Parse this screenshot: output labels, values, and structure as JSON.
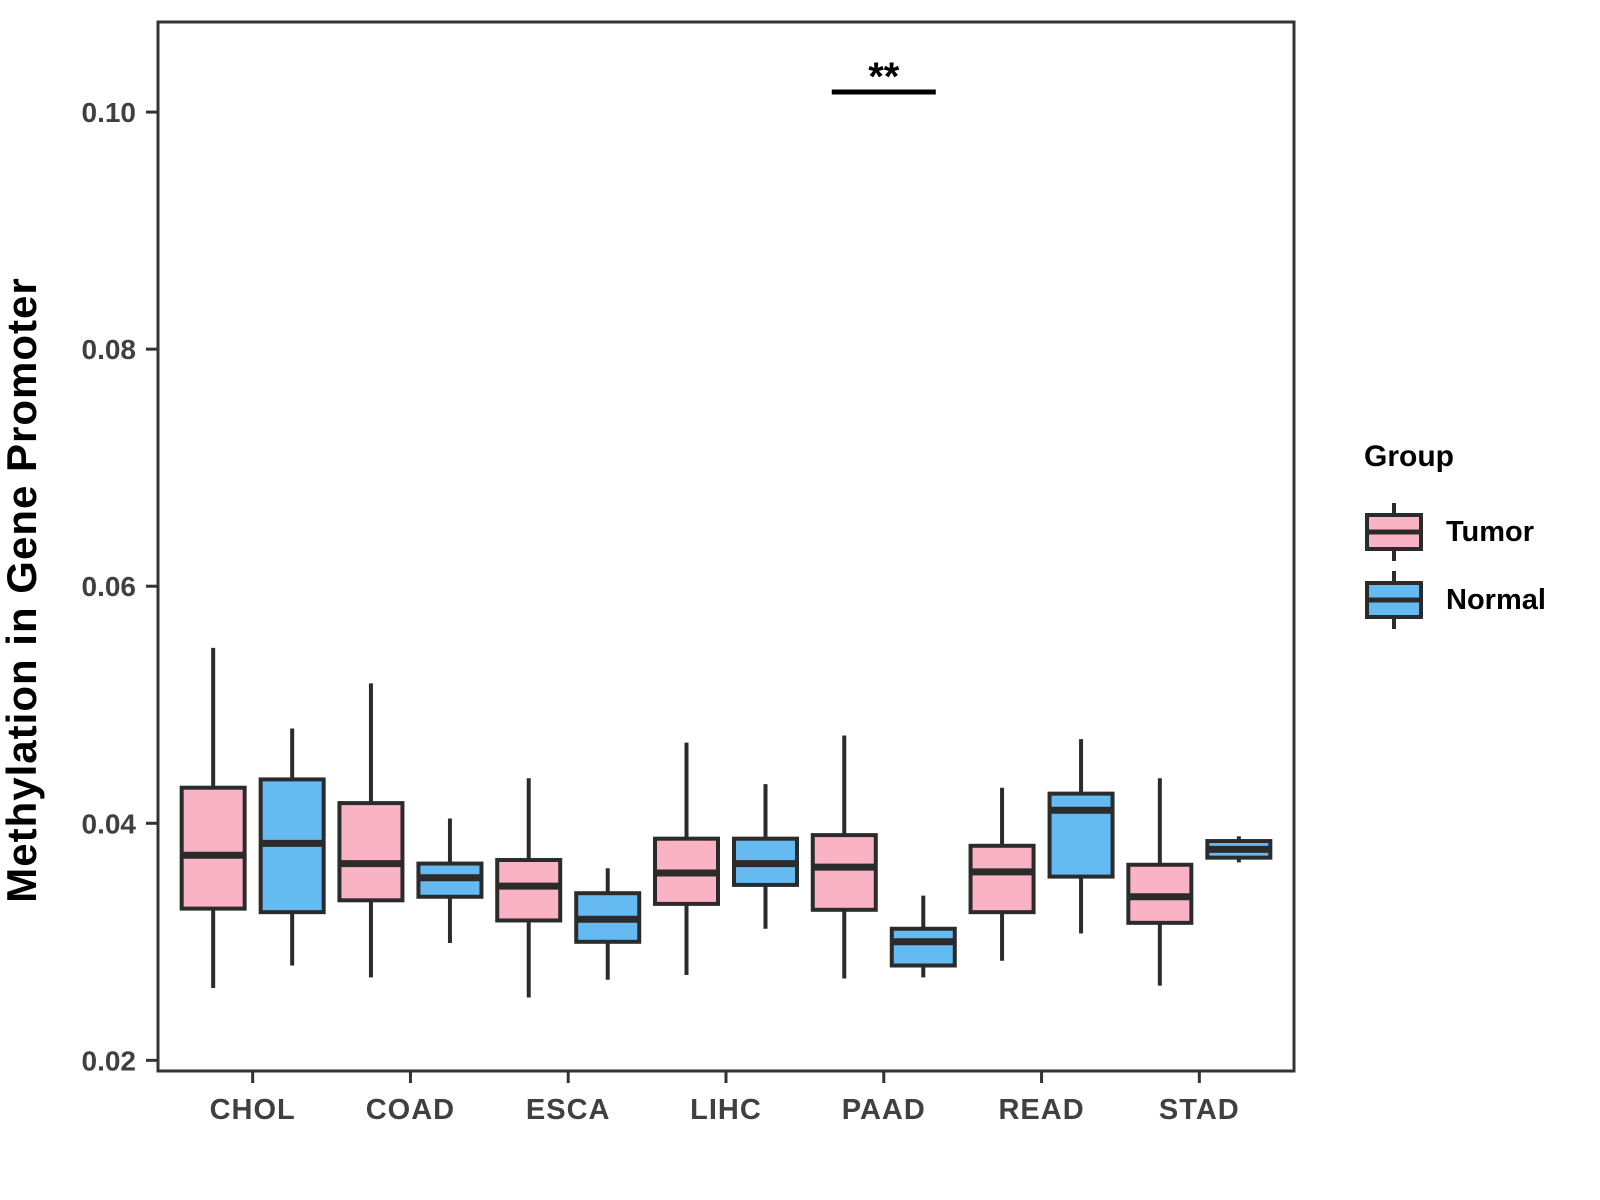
{
  "legend": {
    "title": "Group",
    "items": [
      {
        "label": "Tumor",
        "color": "#FAB3C4"
      },
      {
        "label": "Normal",
        "color": "#65BAF2"
      }
    ]
  },
  "chart_data": {
    "type": "boxplot",
    "title": "",
    "xlabel": "",
    "ylabel": "Methylation in Gene Promoter",
    "categories": [
      "CHOL",
      "COAD",
      "ESCA",
      "LIHC",
      "PAAD",
      "READ",
      "STAD"
    ],
    "groups": [
      {
        "name": "Tumor",
        "color": "#FAB3C4"
      },
      {
        "name": "Normal",
        "color": "#65BAF2"
      }
    ],
    "ylim": [
      0.0191,
      0.1076
    ],
    "yticks": [
      {
        "value": 0.1,
        "label": "0.10"
      },
      {
        "value": 0.08,
        "label": "0.08"
      },
      {
        "value": 0.06,
        "label": "0.06"
      },
      {
        "value": 0.04,
        "label": "0.04"
      },
      {
        "value": 0.02,
        "label": "0.02"
      }
    ],
    "grid": "off",
    "legend_position": "right",
    "series": [
      {
        "category": "CHOL",
        "group": "Tumor",
        "min": 0.0261,
        "q1": 0.0328,
        "median": 0.0373,
        "q3": 0.043,
        "max": 0.0548
      },
      {
        "category": "CHOL",
        "group": "Normal",
        "min": 0.028,
        "q1": 0.0325,
        "median": 0.0383,
        "q3": 0.0437,
        "max": 0.048
      },
      {
        "category": "COAD",
        "group": "Tumor",
        "min": 0.027,
        "q1": 0.0335,
        "median": 0.0366,
        "q3": 0.0417,
        "max": 0.0518
      },
      {
        "category": "COAD",
        "group": "Normal",
        "min": 0.0299,
        "q1": 0.0338,
        "median": 0.0354,
        "q3": 0.0366,
        "max": 0.0404
      },
      {
        "category": "ESCA",
        "group": "Tumor",
        "min": 0.0253,
        "q1": 0.0318,
        "median": 0.0347,
        "q3": 0.0369,
        "max": 0.0438
      },
      {
        "category": "ESCA",
        "group": "Normal",
        "min": 0.0268,
        "q1": 0.03,
        "median": 0.0319,
        "q3": 0.0341,
        "max": 0.0362
      },
      {
        "category": "LIHC",
        "group": "Tumor",
        "min": 0.0272,
        "q1": 0.0332,
        "median": 0.0358,
        "q3": 0.0387,
        "max": 0.0468
      },
      {
        "category": "LIHC",
        "group": "Normal",
        "min": 0.0311,
        "q1": 0.0348,
        "median": 0.0366,
        "q3": 0.0387,
        "max": 0.0433
      },
      {
        "category": "PAAD",
        "group": "Tumor",
        "min": 0.0269,
        "q1": 0.0327,
        "median": 0.0363,
        "q3": 0.039,
        "max": 0.0474
      },
      {
        "category": "PAAD",
        "group": "Normal",
        "min": 0.027,
        "q1": 0.028,
        "median": 0.03,
        "q3": 0.0311,
        "max": 0.0339
      },
      {
        "category": "READ",
        "group": "Tumor",
        "min": 0.0284,
        "q1": 0.0325,
        "median": 0.0359,
        "q3": 0.0381,
        "max": 0.043
      },
      {
        "category": "READ",
        "group": "Normal",
        "min": 0.0307,
        "q1": 0.0355,
        "median": 0.0411,
        "q3": 0.0425,
        "max": 0.0471
      },
      {
        "category": "STAD",
        "group": "Tumor",
        "min": 0.0263,
        "q1": 0.0316,
        "median": 0.0338,
        "q3": 0.0365,
        "max": 0.0438
      },
      {
        "category": "STAD",
        "group": "Normal",
        "min": 0.0367,
        "q1": 0.0371,
        "median": 0.0378,
        "q3": 0.0385,
        "max": 0.0389
      }
    ],
    "annotation": {
      "text": "**",
      "category": "PAAD"
    },
    "style": {
      "box_border": "#2B2B2B",
      "axis_color": "#333333",
      "tick_label_color": "#404040",
      "annotation_color": "#000000"
    }
  }
}
